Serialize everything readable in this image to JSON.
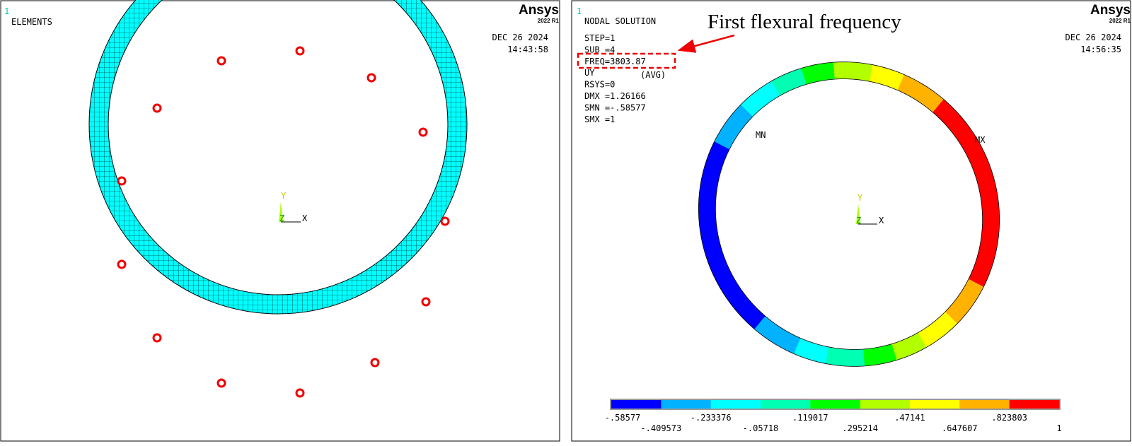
{
  "left_panel": {
    "window_number": "1",
    "title": "ELEMENTS",
    "logo": "Ansys",
    "version": "2022 R1",
    "date": "DEC 26 2024",
    "time": "14:43:58",
    "axes": {
      "y": "Y",
      "z": "Z",
      "x": "X"
    }
  },
  "right_panel": {
    "window_number": "1",
    "title": "NODAL SOLUTION",
    "info": [
      "STEP=1",
      "SUB =4",
      "FREQ=3803.87",
      "UY",
      "RSYS=0",
      "DMX =1.26166",
      "SMN =-.58577",
      "SMX =1"
    ],
    "avg": "(AVG)",
    "min_label": "MN",
    "max_label": "MX",
    "logo": "Ansys",
    "version": "2022 R1",
    "date": "DEC 26 2024",
    "time": "14:56:35",
    "axes": {
      "y": "Y",
      "z": "Z",
      "x": "X"
    },
    "legend": {
      "top_labels": [
        "-.58577",
        "-.233376",
        ".119017",
        ".47141",
        ".823803"
      ],
      "bottom_labels": [
        "-.409573",
        "-.05718",
        ".295214",
        ".647607",
        "1"
      ]
    }
  },
  "annotation": "First flexural frequency"
}
